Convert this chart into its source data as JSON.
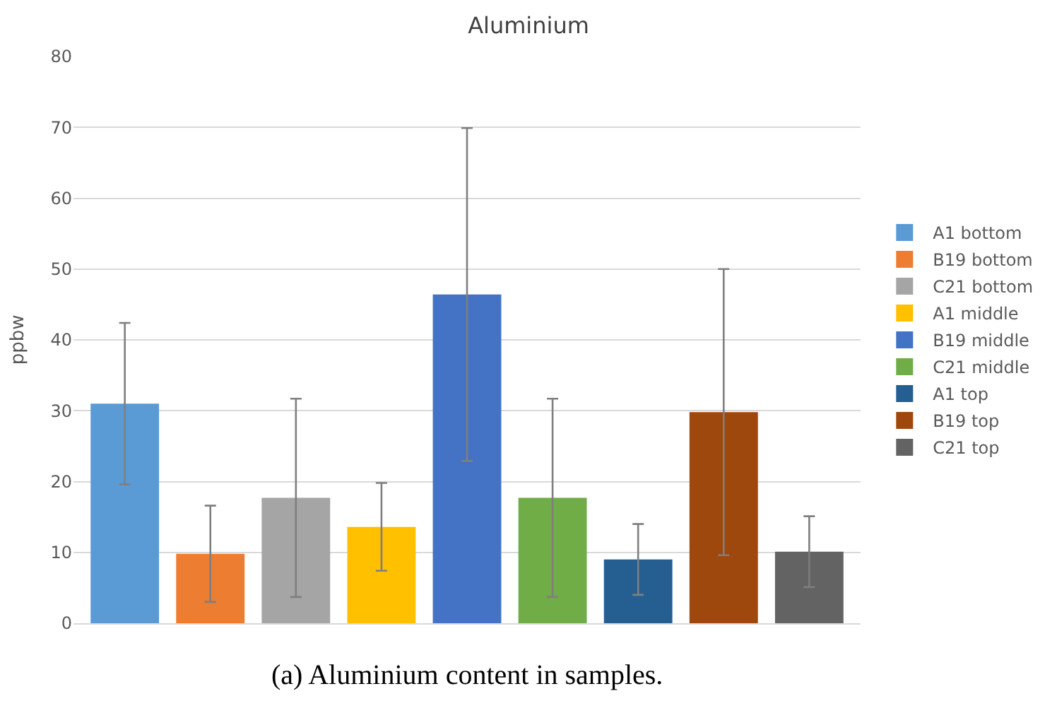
{
  "chart_data": {
    "type": "bar",
    "title": "Aluminium",
    "ylabel": "ppbw",
    "categories": [
      null,
      null,
      null,
      null,
      null,
      null,
      null,
      null,
      null
    ],
    "series": [
      {
        "name": "A1 bottom",
        "color": "#5b9bd5",
        "values": [
          31.0,
          null,
          null,
          null,
          null,
          null,
          null,
          null,
          null
        ],
        "errors": [
          11.4,
          null,
          null,
          null,
          null,
          null,
          null,
          null,
          null
        ]
      },
      {
        "name": "B19 bottom",
        "color": "#ed7d31",
        "values": [
          null,
          9.8,
          null,
          null,
          null,
          null,
          null,
          null,
          null
        ],
        "errors": [
          null,
          6.8,
          null,
          null,
          null,
          null,
          null,
          null,
          null
        ]
      },
      {
        "name": "C21 bottom",
        "color": "#a5a5a5",
        "values": [
          null,
          null,
          17.7,
          null,
          null,
          null,
          null,
          null,
          null
        ],
        "errors": [
          null,
          null,
          14.0,
          null,
          null,
          null,
          null,
          null,
          null
        ]
      },
      {
        "name": "A1 middle",
        "color": "#ffc000",
        "values": [
          null,
          null,
          null,
          13.6,
          null,
          null,
          null,
          null,
          null
        ],
        "errors": [
          null,
          null,
          null,
          6.2,
          null,
          null,
          null,
          null,
          null
        ]
      },
      {
        "name": "B19 middle",
        "color": "#4472c4",
        "values": [
          null,
          null,
          null,
          null,
          46.4,
          null,
          null,
          null,
          null
        ],
        "errors": [
          null,
          null,
          null,
          null,
          23.5,
          null,
          null,
          null,
          null
        ]
      },
      {
        "name": "C21 middle",
        "color": "#70ad47",
        "values": [
          null,
          null,
          null,
          null,
          null,
          17.7,
          null,
          null,
          null
        ],
        "errors": [
          null,
          null,
          null,
          null,
          null,
          14.0,
          null,
          null,
          null
        ]
      },
      {
        "name": "A1 top",
        "color": "#255e91",
        "values": [
          null,
          null,
          null,
          null,
          null,
          null,
          9.0,
          null,
          null
        ],
        "errors": [
          null,
          null,
          null,
          null,
          null,
          null,
          5.0,
          null,
          null
        ]
      },
      {
        "name": "B19 top",
        "color": "#9e480e",
        "values": [
          null,
          null,
          null,
          null,
          null,
          null,
          null,
          29.8,
          null
        ],
        "errors": [
          null,
          null,
          null,
          null,
          null,
          null,
          null,
          20.2,
          null
        ]
      },
      {
        "name": "C21 top",
        "color": "#636363",
        "values": [
          null,
          null,
          null,
          null,
          null,
          null,
          null,
          null,
          10.1
        ],
        "errors": [
          null,
          null,
          null,
          null,
          null,
          null,
          null,
          null,
          5.0
        ]
      }
    ],
    "ylim": [
      0,
      80
    ],
    "yticks": [
      0,
      10,
      20,
      30,
      40,
      50,
      60,
      70,
      80
    ],
    "grid": "y",
    "legend": "right",
    "tick_labels": "y",
    "annotations": [
      "(a) Aluminium content in samples."
    ]
  }
}
